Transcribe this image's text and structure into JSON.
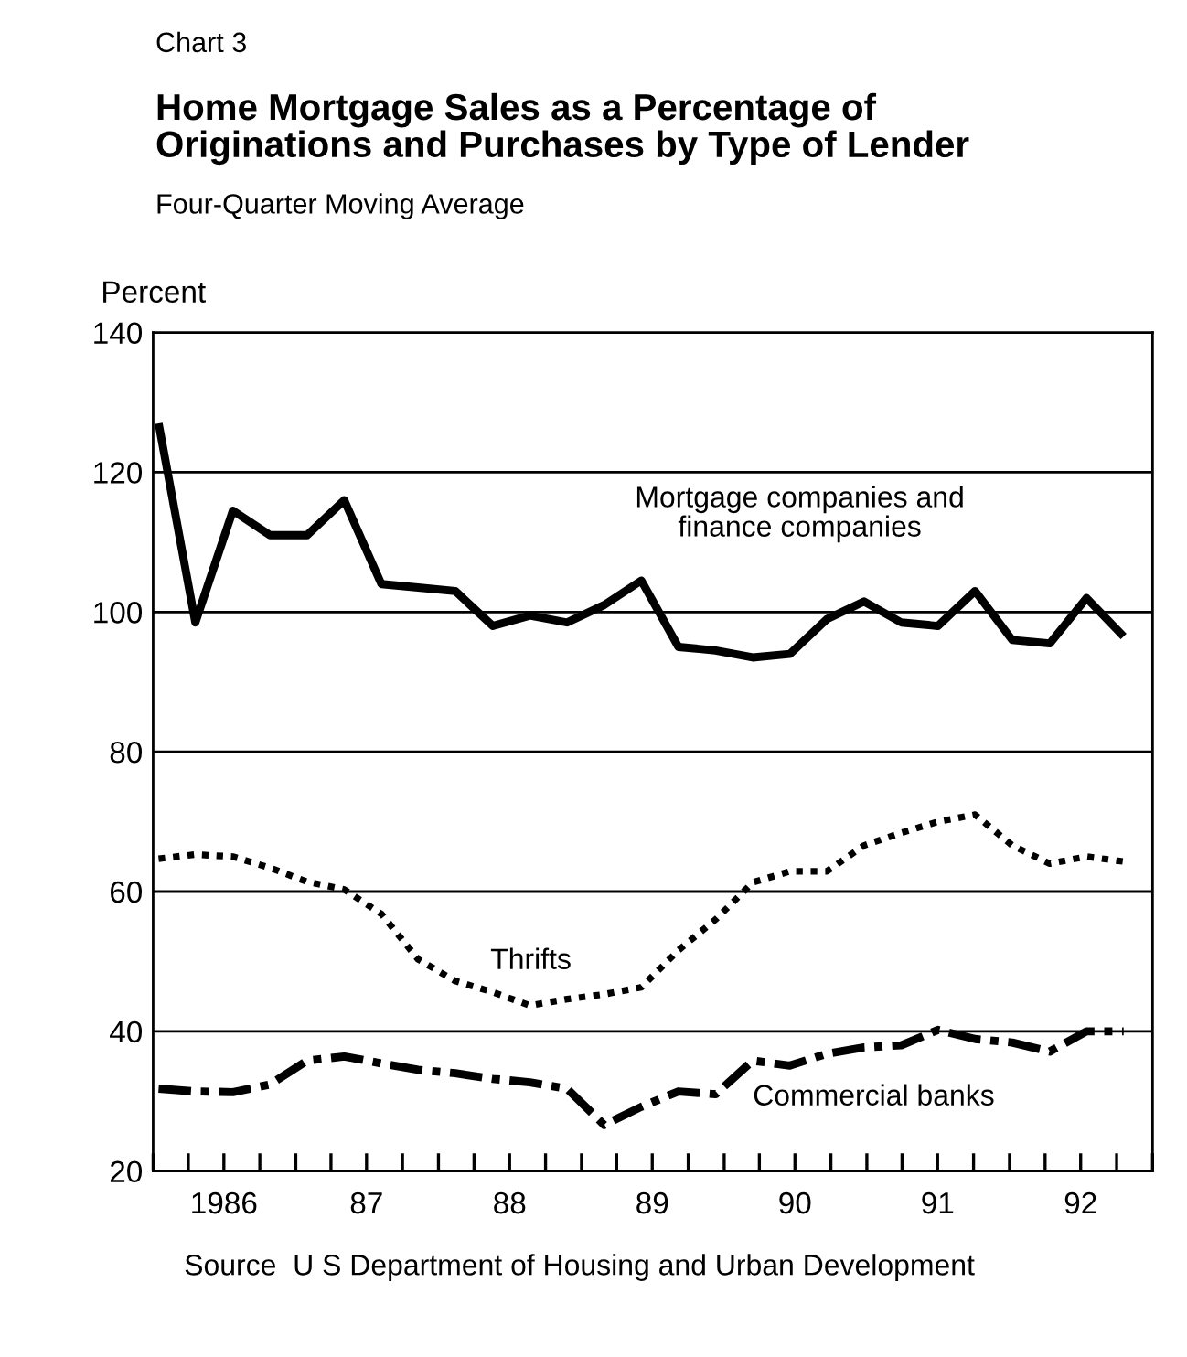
{
  "chart_data": {
    "type": "line",
    "title": "Home Mortgage Sales as a Percentage of\nOriginations and Purchases by Type of Lender",
    "subtitle": "Four-Quarter Moving Average",
    "ylabel": "Percent",
    "annotations": [
      "Chart 3",
      "Source  U S Department of Housing and Urban Development"
    ],
    "x": [
      "1986-01-15",
      "1986-04-19",
      "1986-07-24",
      "1986-10-27",
      "1987-01-30",
      "1987-05-05",
      "1987-08-08",
      "1987-11-10",
      "1988-02-13",
      "1988-05-19",
      "1988-08-22",
      "1988-11-25",
      "1989-02-28",
      "1989-06-03",
      "1989-09-06",
      "1989-12-10",
      "1990-03-15",
      "1990-06-18",
      "1990-09-21",
      "1990-12-25",
      "1991-03-30",
      "1991-07-02",
      "1991-10-05",
      "1992-01-08",
      "1992-04-13",
      "1992-07-16",
      "1992-10-19"
    ],
    "series": [
      {
        "name": "Mortgage companies and\nfinance companies",
        "color": "#000000",
        "line_style": "solid",
        "values": [
          127,
          98.5,
          114.5,
          111,
          111,
          116,
          104,
          103.5,
          103,
          98,
          99.5,
          98.5,
          101,
          104.5,
          95,
          94.5,
          93.5,
          94,
          99,
          101.5,
          98.5,
          98,
          103,
          96,
          95.5,
          102,
          96.5
        ]
      },
      {
        "name": "Thrifts",
        "color": "#000000",
        "line_style": "dotted",
        "values": [
          64.7,
          65.3,
          65,
          63.4,
          61.4,
          60.3,
          56.8,
          50.3,
          47.2,
          45.6,
          43.7,
          44.6,
          45.3,
          46.3,
          51.6,
          56,
          61.3,
          62.9,
          62.9,
          66.6,
          68.4,
          70,
          71,
          66.6,
          64,
          65,
          64.3
        ]
      },
      {
        "name": "Commercial banks",
        "color": "#000000",
        "line_style": "dashdot",
        "values": [
          31.8,
          31.4,
          31.3,
          32.4,
          35.8,
          36.4,
          35.4,
          34.5,
          34,
          33.2,
          32.7,
          31.8,
          26.6,
          29.2,
          31.4,
          31,
          35.8,
          35.1,
          36.8,
          37.7,
          38,
          40.2,
          38.9,
          38.4,
          37.1,
          40,
          40
        ]
      }
    ],
    "xlim": [
      "1986-01-01",
      "1993-01-01"
    ],
    "xticks": [
      {
        "value": "1986-01-01",
        "label": null
      },
      {
        "value": "1986-04-01",
        "label": null
      },
      {
        "value": "1986-07-01",
        "label": "1986"
      },
      {
        "value": "1986-10-01",
        "label": null
      },
      {
        "value": "1987-01-01",
        "label": null
      },
      {
        "value": "1987-04-01",
        "label": null
      },
      {
        "value": "1987-07-01",
        "label": "87"
      },
      {
        "value": "1987-10-01",
        "label": null
      },
      {
        "value": "1988-01-01",
        "label": null
      },
      {
        "value": "1988-04-01",
        "label": null
      },
      {
        "value": "1988-07-01",
        "label": "88"
      },
      {
        "value": "1988-10-01",
        "label": null
      },
      {
        "value": "1989-01-01",
        "label": null
      },
      {
        "value": "1989-04-01",
        "label": null
      },
      {
        "value": "1989-07-01",
        "label": "89"
      },
      {
        "value": "1989-10-01",
        "label": null
      },
      {
        "value": "1990-01-01",
        "label": null
      },
      {
        "value": "1990-04-01",
        "label": null
      },
      {
        "value": "1990-07-01",
        "label": "90"
      },
      {
        "value": "1990-10-01",
        "label": null
      },
      {
        "value": "1991-01-01",
        "label": null
      },
      {
        "value": "1991-04-01",
        "label": null
      },
      {
        "value": "1991-07-01",
        "label": "91"
      },
      {
        "value": "1991-10-01",
        "label": null
      },
      {
        "value": "1992-01-01",
        "label": null
      },
      {
        "value": "1992-04-01",
        "label": null
      },
      {
        "value": "1992-07-01",
        "label": "92"
      },
      {
        "value": "1992-10-01",
        "label": null
      },
      {
        "value": "1993-01-01",
        "label": null
      }
    ],
    "ylim": [
      20,
      140
    ],
    "yticks": [
      20,
      40,
      60,
      80,
      100,
      120,
      140
    ],
    "grid": "y",
    "legend": false,
    "marker": "none"
  }
}
